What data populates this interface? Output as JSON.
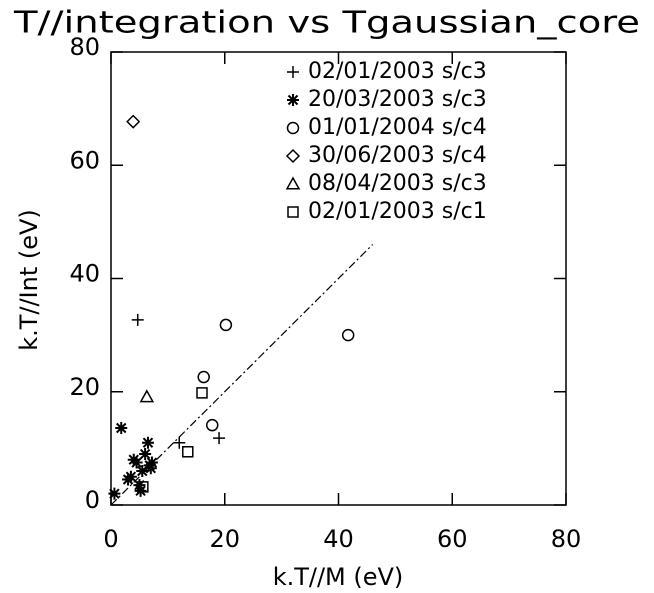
{
  "chart_data": {
    "type": "scatter",
    "title": "T//integration vs Tgaussian_core",
    "x_label": "k.T//M (eV)",
    "y_label": "k.T//Int (eV)",
    "xlim": [
      0,
      80
    ],
    "ylim": [
      0,
      80
    ],
    "xticks": [
      0,
      20,
      40,
      60,
      80
    ],
    "yticks": [
      0,
      20,
      40,
      60,
      80
    ],
    "series": [
      {
        "name": "02/01/2003 s/c3",
        "symbol": "plus",
        "color": "#000000",
        "x": [
          4.7,
          12,
          19
        ],
        "values": [
          32.7,
          11,
          11.8
        ]
      },
      {
        "name": "20/03/2003 s/c3",
        "symbol": "asterisk",
        "color": "#000000",
        "x": [
          1.8,
          0.6,
          3,
          3.5,
          4,
          4.5,
          5,
          5.2,
          5.5,
          6,
          6.5,
          6.8,
          7,
          7.2
        ],
        "values": [
          13.6,
          2,
          4.5,
          5,
          8,
          7.5,
          3.5,
          2.5,
          6,
          9,
          11,
          7,
          6.5,
          7.5
        ]
      },
      {
        "name": "01/01/2004 s/c4",
        "symbol": "circle",
        "color": "#000000",
        "x": [
          20.2,
          16.3,
          17.8,
          41.7
        ],
        "values": [
          31.8,
          22.6,
          14.1,
          30
        ]
      },
      {
        "name": "30/06/2003 s/c4",
        "symbol": "diamond",
        "color": "#000000",
        "x": [
          3.9
        ],
        "values": [
          67.7
        ]
      },
      {
        "name": "08/04/2003 s/c3",
        "symbol": "triangle",
        "color": "#000000",
        "x": [
          6.3
        ],
        "values": [
          19.1
        ]
      },
      {
        "name": "02/01/2003 s/c1",
        "symbol": "square",
        "color": "#000000",
        "x": [
          16,
          13.5,
          5.6
        ],
        "values": [
          19.8,
          9.4,
          3.2
        ]
      }
    ],
    "reference_line": {
      "x": [
        0,
        46
      ],
      "values": [
        0,
        46
      ]
    }
  }
}
